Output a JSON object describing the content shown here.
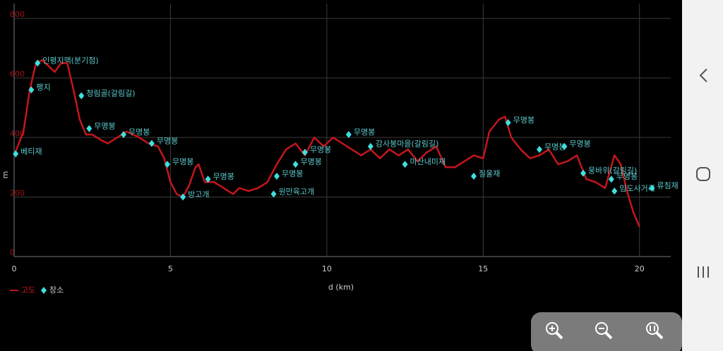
{
  "chart_data": {
    "type": "line",
    "xlabel": "d (km)",
    "ylabel": "m",
    "xlim": [
      0,
      21
    ],
    "ylim": [
      0,
      850
    ],
    "xticks": [
      0,
      5,
      10,
      15,
      20
    ],
    "yticks": [
      0,
      200,
      400,
      600,
      800
    ],
    "grid": true,
    "x": [
      0,
      0.3,
      0.5,
      0.7,
      0.9,
      1.1,
      1.3,
      1.5,
      1.7,
      1.9,
      2.1,
      2.3,
      2.5,
      2.8,
      3.0,
      3.3,
      3.6,
      4.0,
      4.3,
      4.6,
      4.8,
      5.0,
      5.2,
      5.4,
      5.6,
      5.8,
      5.9,
      6.1,
      6.4,
      6.7,
      7.0,
      7.2,
      7.5,
      7.8,
      8.1,
      8.4,
      8.7,
      9.0,
      9.3,
      9.6,
      9.9,
      10.2,
      10.5,
      10.8,
      11.1,
      11.4,
      11.7,
      12.0,
      12.3,
      12.6,
      12.9,
      13.2,
      13.5,
      13.8,
      14.1,
      14.4,
      14.7,
      15.0,
      15.2,
      15.5,
      15.7,
      15.9,
      16.2,
      16.5,
      16.8,
      17.1,
      17.4,
      17.7,
      18.0,
      18.3,
      18.6,
      18.9,
      19.2,
      19.4,
      19.6,
      19.8,
      20.0
    ],
    "series": [
      {
        "name": "고도",
        "color": "#c4161c",
        "values": [
          340,
          420,
          560,
          650,
          660,
          640,
          620,
          650,
          650,
          560,
          460,
          410,
          410,
          390,
          380,
          400,
          420,
          400,
          380,
          370,
          330,
          250,
          210,
          200,
          240,
          300,
          310,
          250,
          250,
          230,
          210,
          230,
          220,
          230,
          250,
          310,
          360,
          380,
          340,
          400,
          370,
          400,
          380,
          360,
          340,
          360,
          330,
          360,
          340,
          360,
          320,
          350,
          370,
          300,
          300,
          320,
          340,
          330,
          420,
          460,
          470,
          400,
          360,
          330,
          340,
          360,
          310,
          320,
          340,
          260,
          250,
          230,
          340,
          310,
          220,
          150,
          100
        ]
      }
    ],
    "points": {
      "name": "장소",
      "color": "#3fe0e0",
      "x": [
        0.05,
        0.55,
        0.75,
        2.15,
        2.4,
        3.5,
        4.4,
        4.9,
        5.4,
        6.2,
        8.3,
        8.4,
        9.0,
        9.3,
        10.7,
        11.4,
        12.5,
        14.7,
        15.8,
        16.8,
        17.6,
        18.2,
        19.1,
        19.2,
        20.4
      ],
      "values": [
        345,
        560,
        650,
        540,
        430,
        410,
        380,
        310,
        200,
        260,
        210,
        270,
        310,
        350,
        410,
        370,
        310,
        270,
        450,
        360,
        370,
        280,
        260,
        220,
        230
      ],
      "labels": [
        "베티재",
        "팽지",
        "인평지맥(분기점)",
        "청림골(갈림길)",
        "무명봉",
        "무명봉",
        "무명봉",
        "무명봉",
        "방고개",
        "무명봉",
        "원만육고개",
        "무명봉",
        "무명봉",
        "무명봉",
        "무명봉",
        "감사봉마을(갈림길)",
        "마산내미재",
        "질울재",
        "무명봉",
        "무명봉",
        "무명봉",
        "웅바위(갈림길)",
        "무명봉",
        "임도사거리",
        "류침재"
      ]
    }
  }
}
